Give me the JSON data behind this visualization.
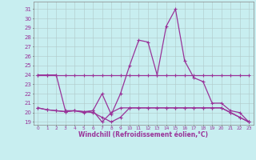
{
  "xlabel": "Windchill (Refroidissement éolien,°C)",
  "bg_color": "#c8eef0",
  "line_color": "#993399",
  "grid_color": "#b0c8c8",
  "hours": [
    0,
    1,
    2,
    3,
    4,
    5,
    6,
    7,
    8,
    9,
    10,
    11,
    12,
    13,
    14,
    15,
    16,
    17,
    18,
    19,
    20,
    21,
    22,
    23
  ],
  "series1": [
    24.0,
    24.0,
    24.0,
    24.0,
    24.0,
    24.0,
    24.0,
    24.0,
    24.0,
    24.0,
    24.0,
    24.0,
    24.0,
    24.0,
    24.0,
    24.0,
    24.0,
    24.0,
    24.0,
    24.0,
    24.0,
    24.0,
    24.0,
    24.0
  ],
  "series2": [
    20.5,
    20.3,
    20.2,
    20.1,
    20.2,
    20.1,
    20.2,
    19.0,
    20.0,
    20.5,
    20.5,
    20.5,
    20.5,
    20.5,
    20.5,
    20.5,
    20.5,
    20.5,
    20.5,
    20.5,
    20.5,
    20.0,
    19.5,
    19.0
  ],
  "series3": [
    20.5,
    20.3,
    20.2,
    20.1,
    20.2,
    20.1,
    20.0,
    19.5,
    19.0,
    19.5,
    20.5,
    20.5,
    20.5,
    20.5,
    20.5,
    20.5,
    20.5,
    20.5,
    20.5,
    20.5,
    20.5,
    20.0,
    19.5,
    19.0
  ],
  "series4": [
    24.0,
    24.0,
    24.0,
    20.2,
    20.2,
    20.0,
    20.2,
    22.0,
    19.8,
    22.0,
    25.0,
    27.7,
    27.5,
    24.0,
    29.2,
    31.0,
    25.5,
    23.7,
    23.3,
    21.0,
    21.0,
    20.2,
    20.0,
    19.0
  ],
  "ylim": [
    18.7,
    31.8
  ],
  "yticks": [
    19,
    20,
    21,
    22,
    23,
    24,
    25,
    26,
    27,
    28,
    29,
    30,
    31
  ],
  "xlim": [
    -0.5,
    23.5
  ],
  "xticks": [
    0,
    1,
    2,
    3,
    4,
    5,
    6,
    7,
    8,
    9,
    10,
    11,
    12,
    13,
    14,
    15,
    16,
    17,
    18,
    19,
    20,
    21,
    22,
    23
  ]
}
